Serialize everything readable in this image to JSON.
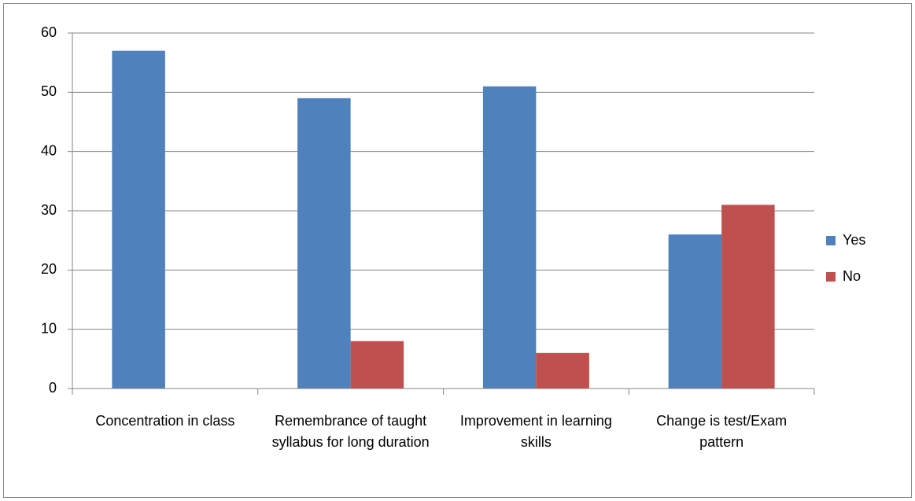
{
  "chart_data": {
    "type": "bar",
    "categories": [
      "Concentration in class",
      "Remembrance of taught syllabus for long duration",
      "Improvement in learning skills",
      "Change is test/Exam pattern"
    ],
    "series": [
      {
        "name": "Yes",
        "color": "#4f81bd",
        "values": [
          57,
          49,
          51,
          26
        ]
      },
      {
        "name": "No",
        "color": "#c0504d",
        "values": [
          0,
          8,
          6,
          31
        ]
      }
    ],
    "ylim": [
      0,
      60
    ],
    "yticks": [
      0,
      10,
      20,
      30,
      40,
      50,
      60
    ],
    "grid": true,
    "legend": "right"
  }
}
